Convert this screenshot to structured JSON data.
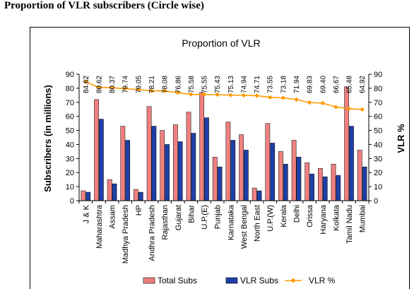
{
  "page": {
    "heading": "Proportion of VLR subscribers (Circle wise)"
  },
  "chart_data": {
    "type": "bar",
    "title": "Proportion of VLR",
    "ylabel": "Subscribers (in millions)",
    "y2label": "VLR %",
    "ylim": [
      0,
      90
    ],
    "y2lim": [
      0,
      90
    ],
    "yticks": [
      0,
      10,
      20,
      30,
      40,
      50,
      60,
      70,
      80,
      90
    ],
    "grid": false,
    "legend_position": "bottom",
    "colors": {
      "total": "#f08080",
      "vlr": "#1f3fa8",
      "pct": "#ff9900"
    },
    "categories": [
      "J & K",
      "Maharashtra",
      "Assam",
      "Madhya Pradesh",
      "HP",
      "Andhra Pradesh",
      "Rajasthan",
      "Gujarat",
      "Bihar",
      "U.P.(E)",
      "Punjab",
      "Karnataka",
      "West Bengal",
      "North East",
      "U.P.(W)",
      "Kerala",
      "Delhi",
      "Orissa",
      "Haryana",
      "Kolkata",
      "Tamil Nadu",
      "Mumbai"
    ],
    "series": [
      {
        "name": "Total Subs",
        "kind": "bar",
        "values": [
          7,
          72,
          15,
          53,
          8,
          67,
          50,
          54,
          63,
          77,
          31,
          56,
          47,
          9,
          55,
          35,
          43,
          27,
          23,
          26,
          81,
          36
        ]
      },
      {
        "name": "VLR Subs",
        "kind": "bar",
        "values": [
          6,
          58,
          12,
          43,
          6,
          53,
          40,
          42,
          48,
          59,
          24,
          43,
          36,
          7,
          41,
          26,
          31,
          19,
          17,
          18,
          53,
          24
        ]
      },
      {
        "name": "VLR %",
        "kind": "line",
        "axis": "right",
        "values": [
          84.62,
          80.62,
          80.37,
          79.74,
          79.05,
          78.21,
          78.08,
          76.86,
          75.58,
          75.55,
          75.43,
          75.13,
          74.94,
          74.71,
          73.55,
          73.18,
          71.94,
          69.83,
          69.4,
          66.67,
          65.48,
          64.92
        ]
      }
    ],
    "data_labels": [
      "84.62",
      "80.62",
      "80.37",
      "79.74",
      "79.05",
      "78.21",
      "78.08",
      "76.86",
      "75.58",
      "75.55",
      "75.43",
      "75.13",
      "74.94",
      "74.71",
      "73.55",
      "73.18",
      "71.94",
      "69.83",
      "69.40",
      "66.67",
      "65.48",
      "64.92"
    ]
  }
}
